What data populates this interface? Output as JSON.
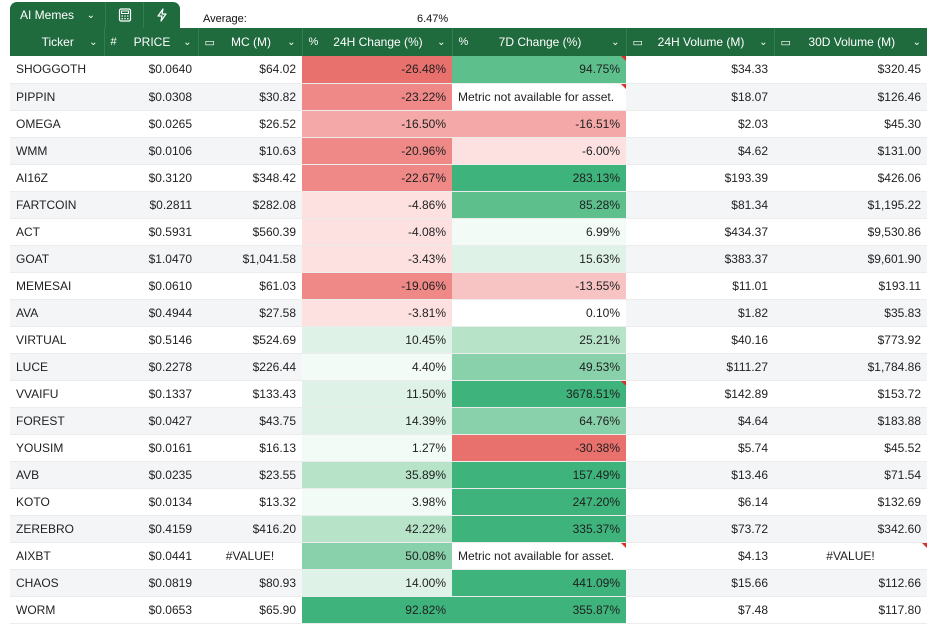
{
  "toolbar": {
    "tab_label": "AI Memes",
    "tab_icons": [
      "calculator-icon",
      "lightning-icon"
    ],
    "average_label": "Average:",
    "average_value": "6.47%"
  },
  "columns": [
    {
      "key": "ticker",
      "prefix": "",
      "label": "Ticker"
    },
    {
      "key": "price",
      "prefix": "#",
      "label": "PRICE"
    },
    {
      "key": "mc",
      "prefix": "▭",
      "label": "MC (M)"
    },
    {
      "key": "change24h",
      "prefix": "%",
      "label": "24H Change (%)"
    },
    {
      "key": "change7d",
      "prefix": "%",
      "label": "7D Change (%)"
    },
    {
      "key": "vol24h",
      "prefix": "▭",
      "label": "24H Volume (M)"
    },
    {
      "key": "vol30d",
      "prefix": "▭",
      "label": "30D Volume (M)"
    }
  ],
  "rows": [
    {
      "ticker": "SHOGGOTH",
      "price": "$0.0640",
      "mc": "$64.02",
      "change24h": "-26.48%",
      "change7d": "94.75%",
      "vol24h": "$34.33",
      "vol30d": "$320.45",
      "c24": "c-r5",
      "c7": "c-g5",
      "flag7": true
    },
    {
      "ticker": "PIPPIN",
      "price": "$0.0308",
      "mc": "$30.82",
      "change24h": "-23.22%",
      "change7d": "Metric not available for asset.",
      "vol24h": "$18.07",
      "vol30d": "$126.46",
      "c24": "c-r4",
      "c7": "c-w",
      "note7": true
    },
    {
      "ticker": "OMEGA",
      "price": "$0.0265",
      "mc": "$26.52",
      "change24h": "-16.50%",
      "change7d": "-16.51%",
      "vol24h": "$2.03",
      "vol30d": "$45.30",
      "c24": "c-r3",
      "c7": "c-r3"
    },
    {
      "ticker": "WMM",
      "price": "$0.0106",
      "mc": "$10.63",
      "change24h": "-20.96%",
      "change7d": "-6.00%",
      "vol24h": "$4.62",
      "vol30d": "$131.00",
      "c24": "c-r4",
      "c7": "c-r1"
    },
    {
      "ticker": "AI16Z",
      "price": "$0.3120",
      "mc": "$348.42",
      "change24h": "-22.67%",
      "change7d": "283.13%",
      "vol24h": "$193.39",
      "vol30d": "$426.06",
      "c24": "c-r4",
      "c7": "c-g6"
    },
    {
      "ticker": "FARTCOIN",
      "price": "$0.2811",
      "mc": "$282.08",
      "change24h": "-4.86%",
      "change7d": "85.28%",
      "vol24h": "$81.34",
      "vol30d": "$1,195.22",
      "c24": "c-r1",
      "c7": "c-g5"
    },
    {
      "ticker": "ACT",
      "price": "$0.5931",
      "mc": "$560.39",
      "change24h": "-4.08%",
      "change7d": "6.99%",
      "vol24h": "$434.37",
      "vol30d": "$9,530.86",
      "c24": "c-r1",
      "c7": "c-g1"
    },
    {
      "ticker": "GOAT",
      "price": "$1.0470",
      "mc": "$1,041.58",
      "change24h": "-3.43%",
      "change7d": "15.63%",
      "vol24h": "$383.37",
      "vol30d": "$9,601.90",
      "c24": "c-r1",
      "c7": "c-g2"
    },
    {
      "ticker": "MEMESAI",
      "price": "$0.0610",
      "mc": "$61.03",
      "change24h": "-19.06%",
      "change7d": "-13.55%",
      "vol24h": "$11.01",
      "vol30d": "$193.11",
      "c24": "c-r4",
      "c7": "c-r2"
    },
    {
      "ticker": "AVA",
      "price": "$0.4944",
      "mc": "$27.58",
      "change24h": "-3.81%",
      "change7d": "0.10%",
      "vol24h": "$1.82",
      "vol30d": "$35.83",
      "c24": "c-r1",
      "c7": "c-w"
    },
    {
      "ticker": "VIRTUAL",
      "price": "$0.5146",
      "mc": "$524.69",
      "change24h": "10.45%",
      "change7d": "25.21%",
      "vol24h": "$40.16",
      "vol30d": "$773.92",
      "c24": "c-g2",
      "c7": "c-g3"
    },
    {
      "ticker": "LUCE",
      "price": "$0.2278",
      "mc": "$226.44",
      "change24h": "4.40%",
      "change7d": "49.53%",
      "vol24h": "$111.27",
      "vol30d": "$1,784.86",
      "c24": "c-g1",
      "c7": "c-g4"
    },
    {
      "ticker": "VVAIFU",
      "price": "$0.1337",
      "mc": "$133.43",
      "change24h": "11.50%",
      "change7d": "3678.51%",
      "vol24h": "$142.89",
      "vol30d": "$153.72",
      "c24": "c-g2",
      "c7": "c-g6",
      "flag7": true
    },
    {
      "ticker": "FOREST",
      "price": "$0.0427",
      "mc": "$43.75",
      "change24h": "14.39%",
      "change7d": "64.76%",
      "vol24h": "$4.64",
      "vol30d": "$183.88",
      "c24": "c-g2",
      "c7": "c-g4"
    },
    {
      "ticker": "YOUSIM",
      "price": "$0.0161",
      "mc": "$16.13",
      "change24h": "1.27%",
      "change7d": "-30.38%",
      "vol24h": "$5.74",
      "vol30d": "$45.52",
      "c24": "c-g1",
      "c7": "c-r5"
    },
    {
      "ticker": "AVB",
      "price": "$0.0235",
      "mc": "$23.55",
      "change24h": "35.89%",
      "change7d": "157.49%",
      "vol24h": "$13.46",
      "vol30d": "$71.54",
      "c24": "c-g3",
      "c7": "c-g6"
    },
    {
      "ticker": "KOTO",
      "price": "$0.0134",
      "mc": "$13.32",
      "change24h": "3.98%",
      "change7d": "247.20%",
      "vol24h": "$6.14",
      "vol30d": "$132.69",
      "c24": "c-g1",
      "c7": "c-g6"
    },
    {
      "ticker": "ZEREBRO",
      "price": "$0.4159",
      "mc": "$416.20",
      "change24h": "42.22%",
      "change7d": "335.37%",
      "vol24h": "$73.72",
      "vol30d": "$342.60",
      "c24": "c-g3",
      "c7": "c-g6"
    },
    {
      "ticker": "AIXBT",
      "price": "$0.0441",
      "mc": "#VALUE!",
      "change24h": "50.08%",
      "change7d": "Metric not available for asset.",
      "vol24h": "$4.13",
      "vol30d": "#VALUE!",
      "c24": "c-g4",
      "c7": "c-w",
      "note7": true,
      "mcCenter": true,
      "vol30Center": true,
      "flag30": true
    },
    {
      "ticker": "CHAOS",
      "price": "$0.0819",
      "mc": "$80.93",
      "change24h": "14.00%",
      "change7d": "441.09%",
      "vol24h": "$15.66",
      "vol30d": "$112.66",
      "c24": "c-g2",
      "c7": "c-g6"
    },
    {
      "ticker": "WORM",
      "price": "$0.0653",
      "mc": "$65.90",
      "change24h": "92.82%",
      "change7d": "355.87%",
      "vol24h": "$7.48",
      "vol30d": "$117.80",
      "c24": "c-g6",
      "c7": "c-g6"
    }
  ]
}
